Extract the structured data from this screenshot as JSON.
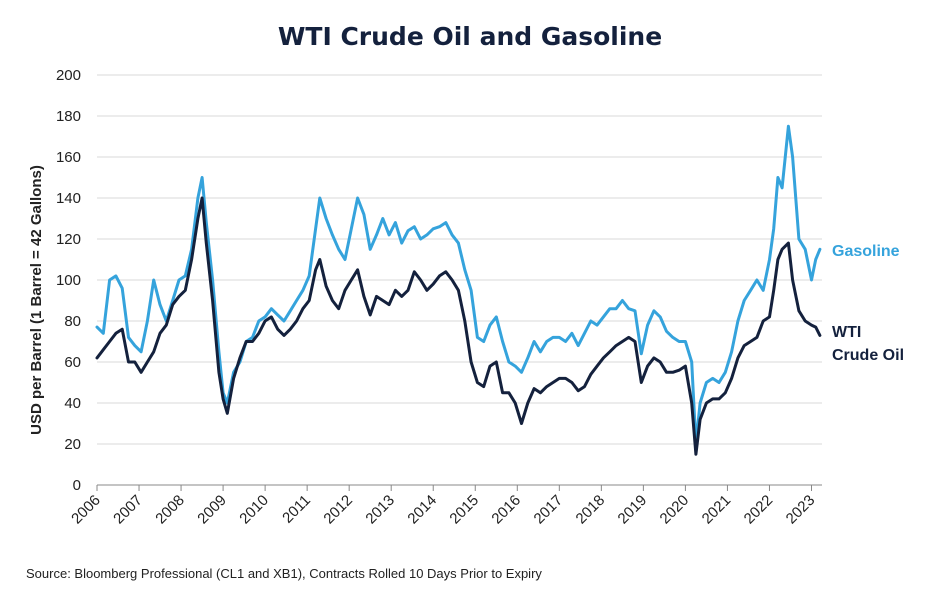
{
  "chart_data": {
    "type": "line",
    "title": "WTI Crude Oil and Gasoline",
    "ylabel": "USD per Barrel (1 Barrel = 42 Gallons)",
    "xlabel": "",
    "ylim": [
      0,
      200
    ],
    "xlim": [
      2006.0,
      2023.25
    ],
    "y_ticks": [
      "0",
      "20",
      "40",
      "60",
      "80",
      "100",
      "120",
      "140",
      "160",
      "180",
      "200"
    ],
    "x_ticks": [
      "2006",
      "2007",
      "2008",
      "2009",
      "2010",
      "2011",
      "2012",
      "2013",
      "2014",
      "2015",
      "2016",
      "2017",
      "2018",
      "2019",
      "2020",
      "2021",
      "2022",
      "2023"
    ],
    "grid": true,
    "legend": "direct labels at right end of lines",
    "series": [
      {
        "name": "Gasoline",
        "label": "Gasoline",
        "color": "#35a3dc",
        "x": [
          2006.0,
          2006.15,
          2006.3,
          2006.45,
          2006.6,
          2006.75,
          2006.9,
          2007.05,
          2007.2,
          2007.35,
          2007.5,
          2007.65,
          2007.8,
          2007.95,
          2008.1,
          2008.25,
          2008.4,
          2008.5,
          2008.6,
          2008.75,
          2008.9,
          2009.0,
          2009.1,
          2009.25,
          2009.4,
          2009.55,
          2009.7,
          2009.85,
          2010.0,
          2010.15,
          2010.3,
          2010.45,
          2010.6,
          2010.75,
          2010.9,
          2011.05,
          2011.2,
          2011.3,
          2011.45,
          2011.6,
          2011.75,
          2011.9,
          2012.05,
          2012.2,
          2012.35,
          2012.5,
          2012.65,
          2012.8,
          2012.95,
          2013.1,
          2013.25,
          2013.4,
          2013.55,
          2013.7,
          2013.85,
          2014.0,
          2014.15,
          2014.3,
          2014.45,
          2014.6,
          2014.75,
          2014.9,
          2015.05,
          2015.2,
          2015.35,
          2015.5,
          2015.65,
          2015.8,
          2015.95,
          2016.1,
          2016.25,
          2016.4,
          2016.55,
          2016.7,
          2016.85,
          2017.0,
          2017.15,
          2017.3,
          2017.45,
          2017.6,
          2017.75,
          2017.9,
          2018.05,
          2018.2,
          2018.35,
          2018.5,
          2018.65,
          2018.8,
          2018.95,
          2019.1,
          2019.25,
          2019.4,
          2019.55,
          2019.7,
          2019.85,
          2020.0,
          2020.15,
          2020.25,
          2020.35,
          2020.5,
          2020.65,
          2020.8,
          2020.95,
          2021.1,
          2021.25,
          2021.4,
          2021.55,
          2021.7,
          2021.85,
          2022.0,
          2022.1,
          2022.2,
          2022.3,
          2022.45,
          2022.55,
          2022.7,
          2022.85,
          2023.0,
          2023.1,
          2023.2
        ],
        "values": [
          77,
          74,
          100,
          102,
          96,
          72,
          68,
          65,
          80,
          100,
          88,
          80,
          90,
          100,
          102,
          115,
          140,
          150,
          128,
          100,
          65,
          45,
          40,
          55,
          60,
          70,
          72,
          80,
          82,
          86,
          83,
          80,
          85,
          90,
          95,
          102,
          125,
          140,
          130,
          122,
          115,
          110,
          125,
          140,
          132,
          115,
          122,
          130,
          122,
          128,
          118,
          124,
          126,
          120,
          122,
          125,
          126,
          128,
          122,
          118,
          105,
          95,
          72,
          70,
          78,
          82,
          70,
          60,
          58,
          55,
          62,
          70,
          65,
          70,
          72,
          72,
          70,
          74,
          68,
          74,
          80,
          78,
          82,
          86,
          86,
          90,
          86,
          85,
          64,
          78,
          85,
          82,
          75,
          72,
          70,
          70,
          60,
          20,
          40,
          50,
          52,
          50,
          55,
          65,
          80,
          90,
          95,
          100,
          95,
          110,
          125,
          150,
          145,
          175,
          160,
          120,
          115,
          100,
          110,
          115
        ]
      },
      {
        "name": "WTI Crude Oil",
        "label": [
          "WTI",
          "Crude Oil"
        ],
        "color": "#14213d",
        "x": [
          2006.0,
          2006.15,
          2006.3,
          2006.45,
          2006.6,
          2006.75,
          2006.9,
          2007.05,
          2007.2,
          2007.35,
          2007.5,
          2007.65,
          2007.8,
          2007.95,
          2008.1,
          2008.25,
          2008.4,
          2008.5,
          2008.6,
          2008.75,
          2008.9,
          2009.0,
          2009.1,
          2009.25,
          2009.4,
          2009.55,
          2009.7,
          2009.85,
          2010.0,
          2010.15,
          2010.3,
          2010.45,
          2010.6,
          2010.75,
          2010.9,
          2011.05,
          2011.2,
          2011.3,
          2011.45,
          2011.6,
          2011.75,
          2011.9,
          2012.05,
          2012.2,
          2012.35,
          2012.5,
          2012.65,
          2012.8,
          2012.95,
          2013.1,
          2013.25,
          2013.4,
          2013.55,
          2013.7,
          2013.85,
          2014.0,
          2014.15,
          2014.3,
          2014.45,
          2014.6,
          2014.75,
          2014.9,
          2015.05,
          2015.2,
          2015.35,
          2015.5,
          2015.65,
          2015.8,
          2015.95,
          2016.1,
          2016.25,
          2016.4,
          2016.55,
          2016.7,
          2016.85,
          2017.0,
          2017.15,
          2017.3,
          2017.45,
          2017.6,
          2017.75,
          2017.9,
          2018.05,
          2018.2,
          2018.35,
          2018.5,
          2018.65,
          2018.8,
          2018.95,
          2019.1,
          2019.25,
          2019.4,
          2019.55,
          2019.7,
          2019.85,
          2020.0,
          2020.15,
          2020.25,
          2020.35,
          2020.5,
          2020.65,
          2020.8,
          2020.95,
          2021.1,
          2021.25,
          2021.4,
          2021.55,
          2021.7,
          2021.85,
          2022.0,
          2022.1,
          2022.2,
          2022.3,
          2022.45,
          2022.55,
          2022.7,
          2022.85,
          2023.0,
          2023.1,
          2023.2
        ],
        "values": [
          62,
          66,
          70,
          74,
          76,
          60,
          60,
          55,
          60,
          65,
          74,
          78,
          88,
          92,
          95,
          110,
          130,
          140,
          118,
          90,
          55,
          42,
          35,
          52,
          62,
          70,
          70,
          74,
          80,
          82,
          76,
          73,
          76,
          80,
          86,
          90,
          105,
          110,
          97,
          90,
          86,
          95,
          100,
          105,
          92,
          83,
          92,
          90,
          88,
          95,
          92,
          95,
          104,
          100,
          95,
          98,
          102,
          104,
          100,
          95,
          80,
          60,
          50,
          48,
          58,
          60,
          45,
          45,
          40,
          30,
          40,
          47,
          45,
          48,
          50,
          52,
          52,
          50,
          46,
          48,
          54,
          58,
          62,
          65,
          68,
          70,
          72,
          70,
          50,
          58,
          62,
          60,
          55,
          55,
          56,
          58,
          40,
          15,
          32,
          40,
          42,
          42,
          45,
          52,
          62,
          68,
          70,
          72,
          80,
          82,
          95,
          110,
          115,
          118,
          100,
          85,
          80,
          78,
          77,
          73
        ]
      }
    ]
  },
  "source_note": "Source: Bloomberg Professional (CL1 and XB1), Contracts Rolled 10 Days Prior to Expiry"
}
